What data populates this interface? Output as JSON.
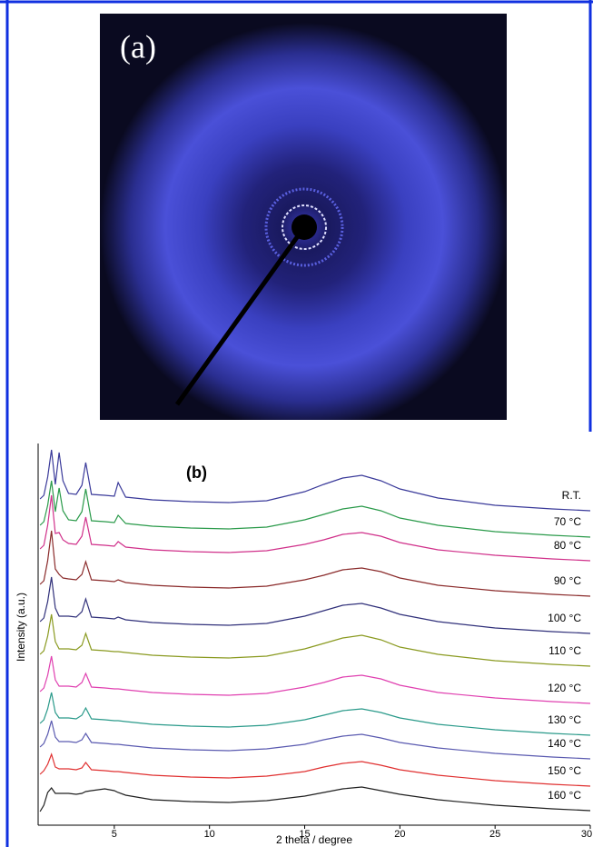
{
  "panel_a": {
    "label": "(a)"
  },
  "chart_data": {
    "type": "line",
    "annotation": "(b)",
    "x_label": "2 theta / degree",
    "y_label": "Intensity (a.u.)",
    "xlim": [
      1,
      30
    ],
    "xticks": [
      5,
      10,
      15,
      20,
      25,
      30
    ],
    "ylim": [
      0,
      420
    ],
    "x": [
      1.1,
      1.3,
      1.5,
      1.7,
      1.9,
      2.1,
      2.3,
      2.6,
      3.0,
      3.3,
      3.5,
      3.8,
      4.5,
      5.0,
      5.2,
      5.6,
      7,
      9,
      11,
      13,
      15,
      16,
      17,
      18,
      19,
      20,
      22,
      25,
      28,
      30
    ],
    "series": [
      {
        "name": "R.T.",
        "color": "#3a3a9a",
        "values": [
          359,
          363,
          383,
          413,
          375,
          410,
          379,
          365,
          364,
          374,
          399,
          364,
          363,
          362,
          377,
          361,
          358,
          356,
          355,
          357,
          367,
          375,
          382,
          385,
          379,
          370,
          360,
          352,
          348,
          346
        ]
      },
      {
        "name": "70 °C",
        "color": "#2a9a4a",
        "values": [
          330,
          334,
          352,
          379,
          345,
          371,
          346,
          336,
          335,
          345,
          370,
          335,
          334,
          333,
          341,
          332,
          329,
          327,
          326,
          328,
          336,
          342,
          348,
          351,
          346,
          338,
          330,
          323,
          319,
          317
        ]
      },
      {
        "name": "80 °C",
        "color": "#d0308a",
        "values": [
          304,
          308,
          330,
          363,
          321,
          322,
          314,
          310,
          309,
          318,
          339,
          309,
          308,
          307,
          312,
          306,
          303,
          301,
          300,
          302,
          309,
          314,
          320,
          322,
          318,
          311,
          303,
          297,
          293,
          291
        ]
      },
      {
        "name": "90 °C",
        "color": "#8a2a2a",
        "values": [
          265,
          269,
          291,
          324,
          282,
          276,
          272,
          271,
          270,
          276,
          290,
          270,
          269,
          268,
          270,
          267,
          264,
          262,
          261,
          263,
          270,
          275,
          281,
          283,
          279,
          272,
          264,
          258,
          254,
          252
        ]
      },
      {
        "name": "100 °C",
        "color": "#30307a",
        "values": [
          224,
          228,
          246,
          273,
          239,
          230,
          230,
          230,
          229,
          235,
          249,
          229,
          228,
          227,
          229,
          226,
          223,
          221,
          220,
          222,
          230,
          236,
          242,
          244,
          239,
          232,
          224,
          217,
          213,
          211
        ]
      },
      {
        "name": "110 °C",
        "color": "#8a9a20",
        "values": [
          188,
          192,
          208,
          232,
          202,
          194,
          194,
          194,
          193,
          198,
          211,
          193,
          192,
          191,
          191,
          190,
          187,
          185,
          184,
          186,
          194,
          200,
          206,
          209,
          204,
          196,
          188,
          181,
          177,
          175
        ]
      },
      {
        "name": "120 °C",
        "color": "#e040b0",
        "values": [
          147,
          151,
          165,
          186,
          160,
          153,
          153,
          153,
          152,
          157,
          167,
          152,
          151,
          150,
          150,
          149,
          146,
          144,
          143,
          145,
          152,
          157,
          163,
          165,
          161,
          154,
          146,
          140,
          136,
          134
        ]
      },
      {
        "name": "130 °C",
        "color": "#2a9a8a",
        "values": [
          112,
          116,
          128,
          146,
          124,
          118,
          118,
          118,
          117,
          121,
          129,
          117,
          116,
          115,
          115,
          114,
          111,
          109,
          108,
          110,
          116,
          121,
          126,
          128,
          124,
          118,
          111,
          105,
          101,
          99
        ]
      },
      {
        "name": "140 °C",
        "color": "#5a5ab0",
        "values": [
          86,
          90,
          100,
          115,
          97,
          92,
          92,
          92,
          91,
          94,
          101,
          91,
          90,
          89,
          89,
          88,
          85,
          83,
          82,
          84,
          89,
          94,
          98,
          100,
          96,
          91,
          85,
          79,
          75,
          73
        ]
      },
      {
        "name": "150 °C",
        "color": "#e03030",
        "values": [
          56,
          60,
          67,
          78,
          64,
          62,
          62,
          62,
          61,
          63,
          69,
          61,
          60,
          59,
          59,
          58,
          55,
          53,
          52,
          54,
          59,
          64,
          68,
          70,
          66,
          61,
          55,
          49,
          45,
          43
        ]
      },
      {
        "name": "160 °C",
        "color": "#202020",
        "values": [
          15,
          22,
          36,
          41,
          35,
          35,
          35,
          35,
          34,
          35,
          37,
          38,
          40,
          38,
          36,
          33,
          28,
          26,
          25,
          27,
          32,
          36,
          40,
          42,
          38,
          34,
          28,
          22,
          18,
          16
        ]
      }
    ]
  }
}
